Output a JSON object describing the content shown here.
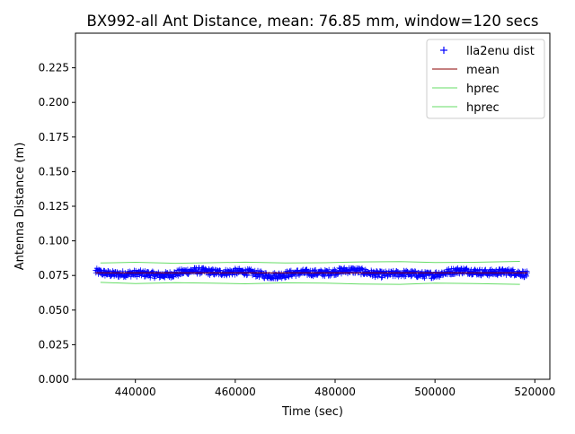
{
  "chart_data": {
    "type": "line",
    "title": "BX992-all Ant Distance, mean: 76.85 mm, window=120 secs",
    "xlabel": "Time (sec)",
    "ylabel": "Antenna Distance (m)",
    "xlim": [
      428000,
      523000
    ],
    "ylim": [
      0.0,
      0.25
    ],
    "xticks": [
      440000,
      460000,
      480000,
      500000,
      520000
    ],
    "xtick_labels": [
      "440000",
      "460000",
      "480000",
      "500000",
      "520000"
    ],
    "yticks": [
      0.0,
      0.025,
      0.05,
      0.075,
      0.1,
      0.125,
      0.15,
      0.175,
      0.2,
      0.225
    ],
    "ytick_labels": [
      "0.000",
      "0.025",
      "0.050",
      "0.075",
      "0.100",
      "0.125",
      "0.150",
      "0.175",
      "0.200",
      "0.225"
    ],
    "grid": false,
    "legend_position": "top-right",
    "series": [
      {
        "name": "lla2enu dist",
        "marker": "+",
        "color": "#0000ff",
        "x_range": [
          432000,
          518500
        ],
        "y_center": 0.0768,
        "y_noise": 0.0035
      },
      {
        "name": "mean",
        "color": "#8b0000",
        "x": [
          432000,
          518500
        ],
        "y": [
          0.07685,
          0.07685
        ]
      },
      {
        "name": "hprec",
        "color": "#66dd66",
        "x": [
          433000,
          440000,
          448000,
          455000,
          462000,
          470000,
          478000,
          485000,
          493000,
          500000,
          508000,
          517000
        ],
        "y": [
          0.084,
          0.0845,
          0.0838,
          0.0842,
          0.0846,
          0.084,
          0.0842,
          0.0848,
          0.085,
          0.0843,
          0.0845,
          0.0852
        ]
      },
      {
        "name": "hprec",
        "color": "#66dd66",
        "x": [
          433000,
          440000,
          448000,
          455000,
          462000,
          470000,
          478000,
          485000,
          493000,
          500000,
          508000,
          517000
        ],
        "y": [
          0.07,
          0.0692,
          0.0698,
          0.0694,
          0.069,
          0.0697,
          0.0695,
          0.0688,
          0.0686,
          0.0694,
          0.0692,
          0.0686
        ]
      }
    ]
  }
}
